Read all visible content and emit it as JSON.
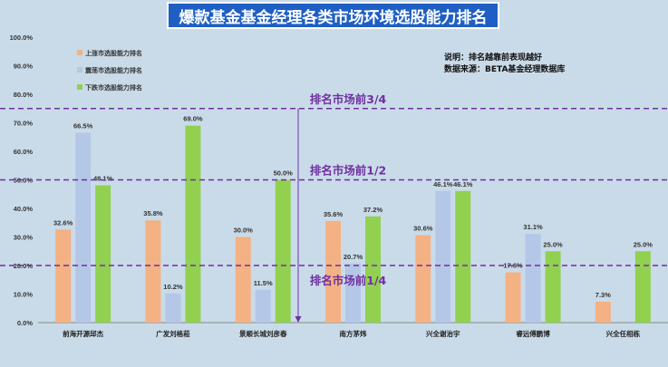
{
  "chart_data": {
    "type": "bar",
    "title": "爆款基金基金经理各类市场环境选股能力排名",
    "categories": [
      "前海开源邱杰",
      "广发刘格菘",
      "景顺长城刘彦春",
      "南方茅炜",
      "兴全谢治宇",
      "睿远傅鹏博",
      "兴全任相栋"
    ],
    "series": [
      {
        "name": "上涨市选股能力排名",
        "color": "#f4b183",
        "values": [
          32.6,
          35.8,
          30.0,
          35.6,
          30.6,
          17.6,
          7.3
        ]
      },
      {
        "name": "震荡市选股能力排名",
        "color": "#b4c7e7",
        "values": [
          66.5,
          10.2,
          11.5,
          20.7,
          46.1,
          31.1,
          null
        ]
      },
      {
        "name": "下跌市选股能力排名",
        "color": "#92d050",
        "values": [
          48.1,
          69.0,
          50.0,
          37.2,
          46.1,
          25.0,
          25.0
        ]
      }
    ],
    "data_labels": [
      [
        "32.6%",
        "35.8%",
        "30.0%",
        "35.6%",
        "30.6%",
        "17.6%",
        "7.3%"
      ],
      [
        "66.5%",
        "10.2%",
        "11.5%",
        "20.7%",
        "46.1%",
        "31.1%",
        ""
      ],
      [
        "48.1%",
        "69.0%",
        "50.0%",
        "37.2%",
        "46.1%",
        "25.0%",
        "25.0%"
      ]
    ],
    "ylim": [
      0,
      100
    ],
    "yticks": [
      "0.0%",
      "10.0%",
      "20.0%",
      "30.0%",
      "40.0%",
      "50.0%",
      "60.0%",
      "70.0%",
      "80.0%",
      "90.0%",
      "100.0%"
    ],
    "reference_lines": [
      {
        "value": 75,
        "label": "排名市场前3/4"
      },
      {
        "value": 50,
        "label": "排名市场前1/2"
      },
      {
        "value": 20,
        "label": "排名市场前1/4"
      }
    ],
    "ref_color": "#7030a0",
    "legend_position": "top-left",
    "grid": false
  },
  "notes": {
    "line1": "说明：排名越靠前表现越好",
    "line2": "数据来源：BETA基金经理数据库"
  }
}
